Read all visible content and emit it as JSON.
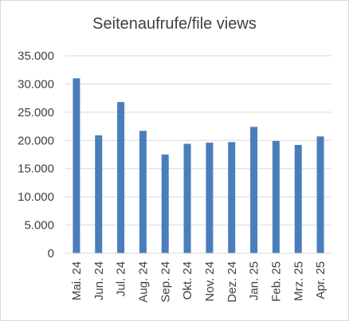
{
  "chart_data": {
    "type": "bar",
    "title": "Seitenaufrufe/file views",
    "xlabel": "",
    "ylabel": "",
    "categories": [
      "Mai. 24",
      "Jun. 24",
      "Jul. 24",
      "Aug. 24",
      "Sep. 24",
      "Okt. 24",
      "Nov. 24",
      "Dez. 24",
      "Jan. 25",
      "Feb. 25",
      "Mrz. 25",
      "Apr. 25"
    ],
    "values": [
      31000,
      20900,
      26800,
      21700,
      17500,
      19400,
      19600,
      19700,
      22400,
      19900,
      19200,
      20700
    ],
    "ylim": [
      0,
      35000
    ],
    "yticks": [
      0,
      5000,
      10000,
      15000,
      20000,
      25000,
      30000,
      35000
    ],
    "ytick_labels": [
      "0",
      "5.000",
      "10.000",
      "15.000",
      "20.000",
      "25.000",
      "30.000",
      "35.000"
    ],
    "grid": true,
    "legend": "none",
    "colors": {
      "bar": "#4a7ebb",
      "grid": "#d9d9d9",
      "text": "#404040"
    }
  }
}
